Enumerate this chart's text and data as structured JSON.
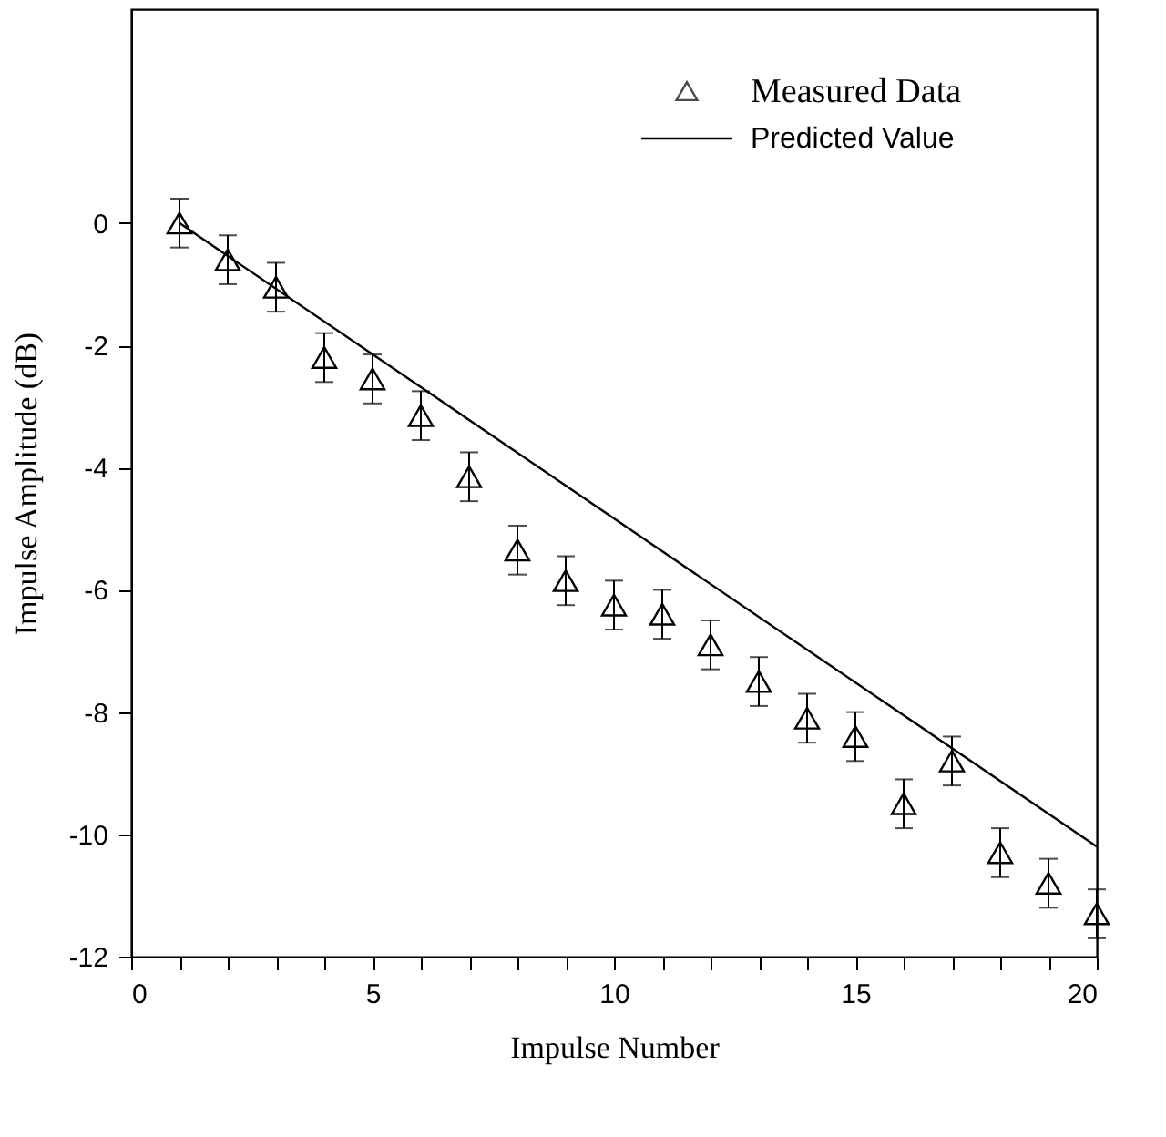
{
  "chart_data": {
    "type": "scatter",
    "xlabel": "Impulse Number",
    "ylabel": "Impulse Amplitude (dB)",
    "xlim": [
      0,
      20
    ],
    "ylim": [
      -12,
      3.5
    ],
    "xticks": [
      0,
      {
        "value": 1,
        "label": null
      },
      {
        "value": 2,
        "label": null
      },
      {
        "value": 3,
        "label": null
      },
      {
        "value": 4,
        "label": null
      },
      5,
      {
        "value": 6,
        "label": null
      },
      {
        "value": 7,
        "label": null
      },
      {
        "value": 8,
        "label": null
      },
      {
        "value": 9,
        "label": null
      },
      10,
      {
        "value": 11,
        "label": null
      },
      {
        "value": 12,
        "label": null
      },
      {
        "value": 13,
        "label": null
      },
      {
        "value": 14,
        "label": null
      },
      15,
      {
        "value": 16,
        "label": null
      },
      {
        "value": 17,
        "label": null
      },
      {
        "value": 18,
        "label": null
      },
      {
        "value": 19,
        "label": null
      },
      20
    ],
    "yticks": [
      -12,
      -10,
      -8,
      -6,
      -4,
      -2,
      0
    ],
    "grid": false,
    "legend": "top right",
    "series": [
      {
        "name": "Measured Data",
        "type": "scatter",
        "marker": "triangle",
        "color": "#000000",
        "x": [
          1,
          2,
          3,
          4,
          5,
          6,
          7,
          8,
          9,
          10,
          11,
          12,
          13,
          14,
          15,
          16,
          17,
          18,
          19,
          20
        ],
        "values": [
          0,
          -0.6,
          -1.05,
          -2.2,
          -2.55,
          -3.15,
          -4.15,
          -5.35,
          -5.85,
          -6.25,
          -6.4,
          -6.9,
          -7.5,
          -8.1,
          -8.4,
          -9.5,
          -8.8,
          -10.3,
          -10.8,
          -11.3
        ],
        "errors": [
          0.4,
          0.4,
          0.4,
          0.4,
          0.4,
          0.4,
          0.4,
          0.4,
          0.4,
          0.4,
          0.4,
          0.4,
          0.4,
          0.4,
          0.4,
          0.4,
          0.4,
          0.4,
          0.4,
          0.4
        ]
      },
      {
        "name": "Predicted Value",
        "type": "line",
        "line_style": "solid",
        "marker": "none",
        "color": "#000000",
        "x": [
          1,
          20
        ],
        "values": [
          0,
          -10.2
        ]
      }
    ]
  }
}
